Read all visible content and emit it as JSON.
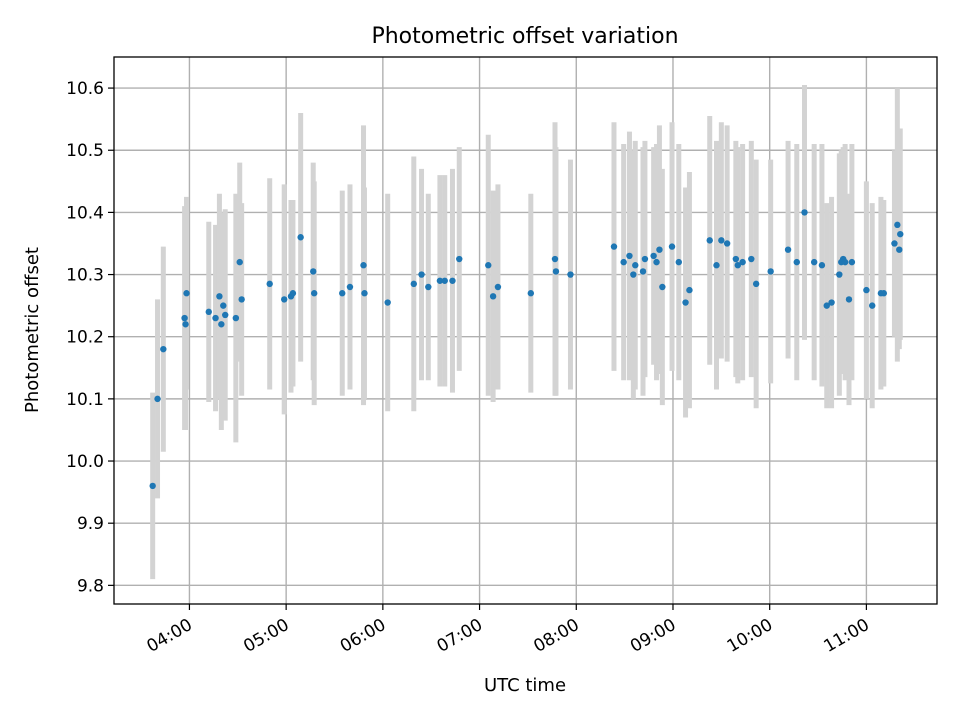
{
  "chart_data": {
    "type": "scatter",
    "title": "Photometric offset variation",
    "xlabel": "UTC time",
    "ylabel": "Photometric offset",
    "xlim_hours": [
      3.22,
      11.73
    ],
    "ylim": [
      9.77,
      10.65
    ],
    "x_ticks": [
      {
        "h": 4,
        "label": "04:00"
      },
      {
        "h": 5,
        "label": "05:00"
      },
      {
        "h": 6,
        "label": "06:00"
      },
      {
        "h": 7,
        "label": "07:00"
      },
      {
        "h": 8,
        "label": "08:00"
      },
      {
        "h": 9,
        "label": "09:00"
      },
      {
        "h": 10,
        "label": "10:00"
      },
      {
        "h": 11,
        "label": "11:00"
      }
    ],
    "y_ticks": [
      {
        "v": 9.8,
        "label": "9.8"
      },
      {
        "v": 9.9,
        "label": "9.9"
      },
      {
        "v": 10.0,
        "label": "10.0"
      },
      {
        "v": 10.1,
        "label": "10.1"
      },
      {
        "v": 10.2,
        "label": "10.2"
      },
      {
        "v": 10.3,
        "label": "10.3"
      },
      {
        "v": 10.4,
        "label": "10.4"
      },
      {
        "v": 10.5,
        "label": "10.5"
      },
      {
        "v": 10.6,
        "label": "10.6"
      }
    ],
    "grid": true,
    "marker_color": "#1f77b4",
    "errorbar_color": "#d3d3d3",
    "points": [
      [
        3.62,
        9.96,
        0.15
      ],
      [
        3.67,
        10.1,
        0.16
      ],
      [
        3.73,
        10.18,
        0.165
      ],
      [
        3.95,
        10.23,
        0.18
      ],
      [
        3.96,
        10.22,
        0.17
      ],
      [
        3.97,
        10.27,
        0.155
      ],
      [
        4.2,
        10.24,
        0.145
      ],
      [
        4.27,
        10.23,
        0.15
      ],
      [
        4.31,
        10.265,
        0.165
      ],
      [
        4.33,
        10.22,
        0.17
      ],
      [
        4.35,
        10.25,
        0.15
      ],
      [
        4.37,
        10.235,
        0.17
      ],
      [
        4.48,
        10.23,
        0.2
      ],
      [
        4.52,
        10.32,
        0.16
      ],
      [
        4.54,
        10.26,
        0.155
      ],
      [
        4.83,
        10.285,
        0.17
      ],
      [
        4.98,
        10.26,
        0.185
      ],
      [
        5.05,
        10.265,
        0.155
      ],
      [
        5.07,
        10.27,
        0.15
      ],
      [
        5.15,
        10.36,
        0.2
      ],
      [
        5.28,
        10.305,
        0.175
      ],
      [
        5.29,
        10.27,
        0.18
      ],
      [
        5.58,
        10.27,
        0.165
      ],
      [
        5.66,
        10.28,
        0.165
      ],
      [
        5.8,
        10.315,
        0.225
      ],
      [
        5.81,
        10.27,
        0.17
      ],
      [
        6.05,
        10.255,
        0.175
      ],
      [
        6.32,
        10.285,
        0.205
      ],
      [
        6.4,
        10.3,
        0.17
      ],
      [
        6.47,
        10.28,
        0.15
      ],
      [
        6.59,
        10.29,
        0.17
      ],
      [
        6.64,
        10.29,
        0.17
      ],
      [
        6.72,
        10.29,
        0.18
      ],
      [
        6.79,
        10.325,
        0.18
      ],
      [
        7.09,
        10.315,
        0.21
      ],
      [
        7.14,
        10.265,
        0.17
      ],
      [
        7.19,
        10.28,
        0.165
      ],
      [
        7.53,
        10.27,
        0.16
      ],
      [
        7.78,
        10.325,
        0.22
      ],
      [
        7.79,
        10.305,
        0.2
      ],
      [
        7.94,
        10.3,
        0.185
      ],
      [
        8.39,
        10.345,
        0.2
      ],
      [
        8.49,
        10.32,
        0.19
      ],
      [
        8.55,
        10.33,
        0.2
      ],
      [
        8.59,
        10.3,
        0.2
      ],
      [
        8.61,
        10.315,
        0.2
      ],
      [
        8.69,
        10.305,
        0.2
      ],
      [
        8.71,
        10.325,
        0.19
      ],
      [
        8.8,
        10.33,
        0.175
      ],
      [
        8.83,
        10.32,
        0.19
      ],
      [
        8.86,
        10.34,
        0.2
      ],
      [
        8.89,
        10.28,
        0.19
      ],
      [
        8.99,
        10.345,
        0.2
      ],
      [
        9.06,
        10.32,
        0.19
      ],
      [
        9.13,
        10.255,
        0.185
      ],
      [
        9.17,
        10.275,
        0.19
      ],
      [
        9.38,
        10.355,
        0.2
      ],
      [
        9.45,
        10.315,
        0.2
      ],
      [
        9.5,
        10.355,
        0.19
      ],
      [
        9.56,
        10.35,
        0.19
      ],
      [
        9.65,
        10.325,
        0.19
      ],
      [
        9.67,
        10.315,
        0.19
      ],
      [
        9.72,
        10.32,
        0.19
      ],
      [
        9.81,
        10.325,
        0.19
      ],
      [
        9.86,
        10.285,
        0.2
      ],
      [
        10.01,
        10.305,
        0.18
      ],
      [
        10.19,
        10.34,
        0.175
      ],
      [
        10.28,
        10.32,
        0.19
      ],
      [
        10.36,
        10.4,
        0.205
      ],
      [
        10.46,
        10.32,
        0.19
      ],
      [
        10.54,
        10.315,
        0.195
      ],
      [
        10.59,
        10.25,
        0.165
      ],
      [
        10.64,
        10.255,
        0.17
      ],
      [
        10.72,
        10.3,
        0.195
      ],
      [
        10.74,
        10.32,
        0.18
      ],
      [
        10.76,
        10.325,
        0.18
      ],
      [
        10.78,
        10.32,
        0.19
      ],
      [
        10.82,
        10.26,
        0.17
      ],
      [
        10.85,
        10.32,
        0.19
      ],
      [
        11.0,
        10.275,
        0.175
      ],
      [
        11.06,
        10.25,
        0.165
      ],
      [
        11.15,
        10.27,
        0.155
      ],
      [
        11.18,
        10.27,
        0.15
      ],
      [
        11.29,
        10.35,
        0.15
      ],
      [
        11.32,
        10.38,
        0.22
      ],
      [
        11.34,
        10.34,
        0.16
      ],
      [
        11.35,
        10.365,
        0.17
      ]
    ]
  }
}
